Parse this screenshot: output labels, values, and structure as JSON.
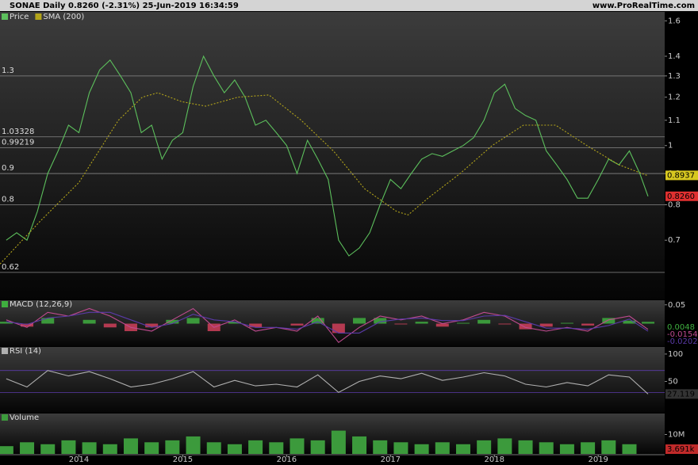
{
  "header": {
    "title": "SONAE Daily 0.8260 (-2.31%) 25-Jun-2019 16:34:59",
    "site": "www.ProRealTime.com"
  },
  "chart_data": [
    {
      "type": "line",
      "log_scale": true,
      "xlim": [
        2013.24,
        2019.64
      ],
      "xticks": [
        2014,
        2015,
        2016,
        2017,
        2018,
        2019
      ],
      "ylim": [
        0.56,
        1.64
      ],
      "yticks": [
        0.7,
        0.8,
        0.9,
        1,
        1.1,
        1.2,
        1.3,
        1.4,
        1.6
      ],
      "levels": [
        1.3,
        1.03328,
        0.99219,
        0.9,
        0.8,
        0.62
      ],
      "series": [
        {
          "name": "Price",
          "color": "#5cbf5c",
          "last_label": "0.8260",
          "label_color": "#e03030",
          "x": [
            2013.3,
            2013.4,
            2013.5,
            2013.6,
            2013.7,
            2013.8,
            2013.9,
            2014.0,
            2014.1,
            2014.2,
            2014.3,
            2014.4,
            2014.5,
            2014.6,
            2014.7,
            2014.8,
            2014.9,
            2015.0,
            2015.1,
            2015.2,
            2015.3,
            2015.4,
            2015.5,
            2015.6,
            2015.7,
            2015.8,
            2015.9,
            2016.0,
            2016.1,
            2016.2,
            2016.3,
            2016.4,
            2016.5,
            2016.6,
            2016.7,
            2016.8,
            2016.9,
            2017.0,
            2017.1,
            2017.2,
            2017.3,
            2017.4,
            2017.5,
            2017.6,
            2017.7,
            2017.8,
            2017.9,
            2018.0,
            2018.1,
            2018.2,
            2018.3,
            2018.4,
            2018.5,
            2018.6,
            2018.7,
            2018.8,
            2018.9,
            2019.0,
            2019.1,
            2019.2,
            2019.3,
            2019.4,
            2019.48
          ],
          "values": [
            0.7,
            0.72,
            0.7,
            0.78,
            0.9,
            0.98,
            1.08,
            1.05,
            1.22,
            1.33,
            1.38,
            1.3,
            1.22,
            1.05,
            1.08,
            0.95,
            1.02,
            1.05,
            1.25,
            1.4,
            1.3,
            1.22,
            1.28,
            1.2,
            1.08,
            1.1,
            1.05,
            1.0,
            0.9,
            1.02,
            0.95,
            0.88,
            0.7,
            0.66,
            0.68,
            0.72,
            0.8,
            0.88,
            0.85,
            0.9,
            0.95,
            0.97,
            0.96,
            0.98,
            1.0,
            1.03,
            1.1,
            1.22,
            1.26,
            1.15,
            1.12,
            1.1,
            0.98,
            0.93,
            0.88,
            0.82,
            0.82,
            0.88,
            0.95,
            0.93,
            0.98,
            0.9,
            0.826
          ]
        },
        {
          "name": "SMA (200)",
          "color": "#b3a41a",
          "dashed": true,
          "last_label": "0.8937",
          "label_color": "#d8c820",
          "x": [
            2013.24,
            2013.62,
            2014.0,
            2014.38,
            2014.61,
            2014.76,
            2014.99,
            2015.22,
            2015.53,
            2015.83,
            2016.14,
            2016.45,
            2016.75,
            2017.06,
            2017.17,
            2017.36,
            2017.67,
            2017.98,
            2018.28,
            2018.59,
            2018.89,
            2019.2,
            2019.47
          ],
          "values": [
            0.64,
            0.75,
            0.87,
            1.1,
            1.2,
            1.22,
            1.18,
            1.16,
            1.2,
            1.21,
            1.1,
            0.98,
            0.85,
            0.78,
            0.77,
            0.82,
            0.9,
            1.0,
            1.08,
            1.08,
            1.0,
            0.93,
            0.8937
          ]
        }
      ]
    },
    {
      "type": "macd",
      "title": "MACD (12,26,9)",
      "xlim": [
        2013.24,
        2019.64
      ],
      "ylim": [
        -0.06,
        0.058
      ],
      "yticks": [
        0.05
      ],
      "x": [
        2013.3,
        2013.5,
        2013.7,
        2013.9,
        2014.1,
        2014.3,
        2014.5,
        2014.7,
        2014.9,
        2015.1,
        2015.3,
        2015.5,
        2015.7,
        2015.9,
        2016.1,
        2016.3,
        2016.5,
        2016.7,
        2016.9,
        2017.1,
        2017.3,
        2017.5,
        2017.7,
        2017.9,
        2018.1,
        2018.3,
        2018.5,
        2018.7,
        2018.9,
        2019.1,
        2019.3,
        2019.48
      ],
      "series": [
        {
          "kind": "bar",
          "color": "#3fae3f",
          "down_color": "#d0405a",
          "values": [
            0.005,
            -0.008,
            0.015,
            0.0,
            0.01,
            -0.01,
            -0.02,
            -0.01,
            0.01,
            0.015,
            -0.02,
            0.005,
            -0.01,
            0.0,
            -0.005,
            0.015,
            -0.025,
            0.015,
            0.015,
            -0.002,
            0.005,
            -0.008,
            0.002,
            0.01,
            -0.002,
            -0.015,
            -0.008,
            0.002,
            -0.005,
            0.015,
            0.008,
            0.0048
          ]
        },
        {
          "kind": "line",
          "color": "#c04a90",
          "values": [
            0.01,
            -0.01,
            0.03,
            0.02,
            0.04,
            0.02,
            -0.01,
            -0.02,
            0.01,
            0.04,
            -0.01,
            0.01,
            -0.02,
            -0.01,
            -0.02,
            0.02,
            -0.05,
            -0.01,
            0.02,
            0.01,
            0.02,
            0.0,
            0.01,
            0.03,
            0.02,
            -0.01,
            -0.02,
            -0.01,
            -0.02,
            0.01,
            0.02,
            -0.0154
          ]
        },
        {
          "kind": "line",
          "color": "#5a3aa8",
          "values": [
            0.005,
            -0.002,
            0.015,
            0.02,
            0.03,
            0.03,
            0.01,
            -0.01,
            0.0,
            0.025,
            0.01,
            0.005,
            -0.01,
            -0.01,
            -0.015,
            0.005,
            -0.025,
            -0.025,
            0.005,
            0.012,
            0.015,
            0.008,
            0.008,
            0.02,
            0.022,
            0.005,
            -0.012,
            -0.012,
            -0.015,
            -0.005,
            0.012,
            -0.0202
          ]
        }
      ]
    },
    {
      "type": "line",
      "title": "RSI (14)",
      "xlim": [
        2013.24,
        2019.64
      ],
      "ylim": [
        -7,
        110
      ],
      "yticks": [
        50,
        100
      ],
      "levels": [
        30,
        70
      ],
      "series": [
        {
          "color": "#b0b0b0",
          "label_color": "#333333",
          "x": [
            2013.3,
            2013.5,
            2013.7,
            2013.9,
            2014.1,
            2014.3,
            2014.5,
            2014.7,
            2014.9,
            2015.1,
            2015.3,
            2015.5,
            2015.7,
            2015.9,
            2016.1,
            2016.3,
            2016.5,
            2016.7,
            2016.9,
            2017.1,
            2017.3,
            2017.5,
            2017.7,
            2017.9,
            2018.1,
            2018.3,
            2018.5,
            2018.7,
            2018.9,
            2019.1,
            2019.3,
            2019.48
          ],
          "values": [
            55,
            40,
            70,
            60,
            68,
            55,
            40,
            45,
            55,
            68,
            40,
            52,
            42,
            45,
            40,
            62,
            30,
            50,
            60,
            55,
            65,
            52,
            58,
            66,
            60,
            45,
            40,
            48,
            42,
            62,
            58,
            27.119
          ]
        }
      ]
    },
    {
      "type": "bar",
      "title": "Volume",
      "xlim": [
        2013.24,
        2019.64
      ],
      "ylim": [
        0,
        20000000
      ],
      "yticks": [
        {
          "value": 10000000,
          "label": "10M"
        }
      ],
      "series": [
        {
          "color": "#3c9a3c",
          "last_label": "3.691k",
          "label_color": "#c02a2a",
          "x": [
            2013.3,
            2013.5,
            2013.7,
            2013.9,
            2014.1,
            2014.3,
            2014.5,
            2014.7,
            2014.9,
            2015.1,
            2015.3,
            2015.5,
            2015.7,
            2015.9,
            2016.1,
            2016.3,
            2016.5,
            2016.7,
            2016.9,
            2017.1,
            2017.3,
            2017.5,
            2017.7,
            2017.9,
            2018.1,
            2018.3,
            2018.5,
            2018.7,
            2018.9,
            2019.1,
            2019.3,
            2019.48
          ],
          "values": [
            4000000,
            6000000,
            5000000,
            7000000,
            6000000,
            5000000,
            8000000,
            6000000,
            7000000,
            9000000,
            6000000,
            5000000,
            7000000,
            6000000,
            8000000,
            7000000,
            12000000,
            9000000,
            7000000,
            6000000,
            5000000,
            6000000,
            5000000,
            7000000,
            8000000,
            7000000,
            6000000,
            5000000,
            6000000,
            7000000,
            5000000,
            3691
          ]
        }
      ]
    }
  ]
}
